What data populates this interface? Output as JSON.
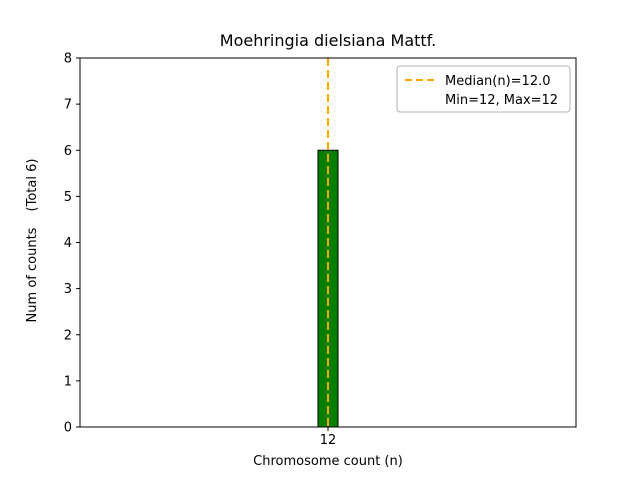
{
  "chart_data": {
    "type": "bar",
    "title": "Moehringia dielsiana Mattf.",
    "xlabel": "Chromosome count (n)",
    "ylabel": "Num of counts",
    "ylabel_note": "(Total 6)",
    "categories": [
      "12"
    ],
    "values": [
      6
    ],
    "ylim": [
      0,
      8
    ],
    "yticks": [
      0,
      1,
      2,
      3,
      4,
      5,
      6,
      7,
      8
    ],
    "median": 12.0,
    "bar_color": "#008000",
    "bar_edge_color": "#000000",
    "median_color": "#FFA500",
    "legend_labels": [
      "Median(n)=12.0",
      "Min=12, Max=12"
    ],
    "legend_position": "upper right",
    "grid": false
  }
}
